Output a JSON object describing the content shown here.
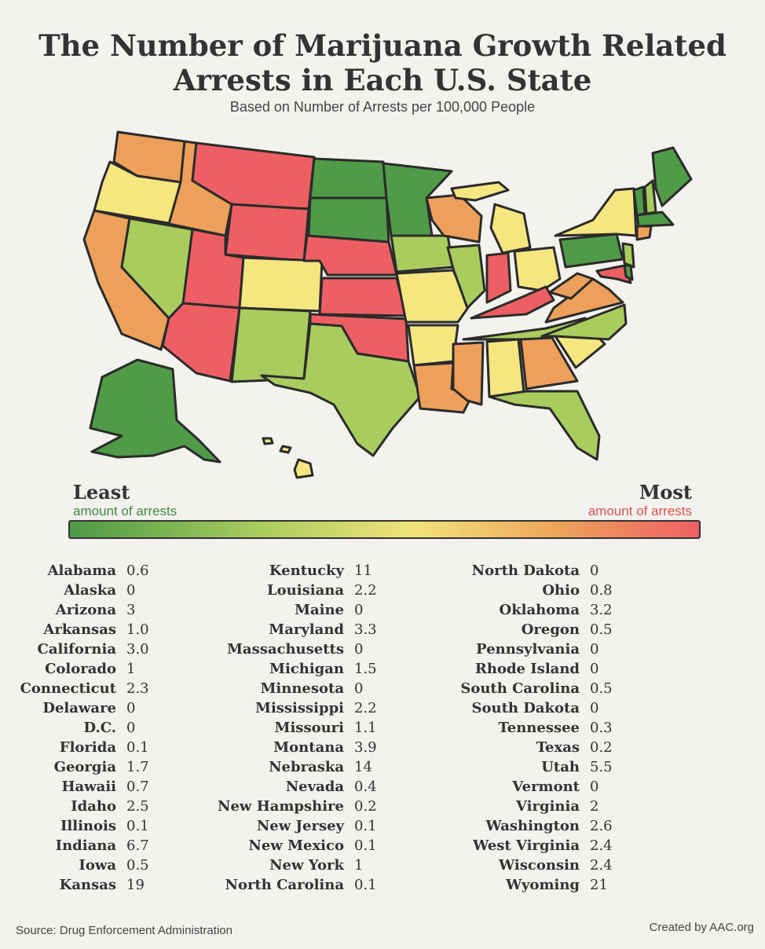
{
  "title_line1": "The Number of Marijuana Growth Related",
  "title_line2": "Arrests in Each U.S. State",
  "subtitle": "Based on Number of Arrests per 100,000 People",
  "legend": {
    "least_label": "Least",
    "least_sub": "amount of arrests",
    "most_label": "Most",
    "most_sub": "amount of arrests"
  },
  "footer": {
    "source": "Source: Drug Enforcement Administration",
    "credit": "Created by AAC.org"
  },
  "colors": {
    "dark_green": "#4f9b48",
    "light_green": "#a9cc5e",
    "yellow": "#f5e680",
    "orange": "#eca05a",
    "red": "#ee5f63"
  },
  "states": [
    {
      "name": "Alabama",
      "value": "0.6"
    },
    {
      "name": "Alaska",
      "value": "0"
    },
    {
      "name": "Arizona",
      "value": "3"
    },
    {
      "name": "Arkansas",
      "value": "1.0"
    },
    {
      "name": "California",
      "value": "3.0"
    },
    {
      "name": "Colorado",
      "value": "1"
    },
    {
      "name": "Connecticut",
      "value": "2.3"
    },
    {
      "name": "Delaware",
      "value": "0"
    },
    {
      "name": "D.C.",
      "value": "0"
    },
    {
      "name": "Florida",
      "value": "0.1"
    },
    {
      "name": "Georgia",
      "value": "1.7"
    },
    {
      "name": "Hawaii",
      "value": "0.7"
    },
    {
      "name": "Idaho",
      "value": "2.5"
    },
    {
      "name": "Illinois",
      "value": "0.1"
    },
    {
      "name": "Indiana",
      "value": "6.7"
    },
    {
      "name": "Iowa",
      "value": "0.5"
    },
    {
      "name": "Kansas",
      "value": "19"
    },
    {
      "name": "Kentucky",
      "value": "11"
    },
    {
      "name": "Louisiana",
      "value": "2.2"
    },
    {
      "name": "Maine",
      "value": "0"
    },
    {
      "name": "Maryland",
      "value": "3.3"
    },
    {
      "name": "Massachusetts",
      "value": "0"
    },
    {
      "name": "Michigan",
      "value": "1.5"
    },
    {
      "name": "Minnesota",
      "value": "0"
    },
    {
      "name": "Mississippi",
      "value": "2.2"
    },
    {
      "name": "Missouri",
      "value": "1.1"
    },
    {
      "name": "Montana",
      "value": "3.9"
    },
    {
      "name": "Nebraska",
      "value": "14"
    },
    {
      "name": "Nevada",
      "value": "0.4"
    },
    {
      "name": "New Hampshire",
      "value": "0.2"
    },
    {
      "name": "New Jersey",
      "value": "0.1"
    },
    {
      "name": "New Mexico",
      "value": "0.1"
    },
    {
      "name": "New York",
      "value": "1"
    },
    {
      "name": "North Carolina",
      "value": "0.1"
    },
    {
      "name": "North Dakota",
      "value": "0"
    },
    {
      "name": "Ohio",
      "value": "0.8"
    },
    {
      "name": "Oklahoma",
      "value": "3.2"
    },
    {
      "name": "Oregon",
      "value": "0.5"
    },
    {
      "name": "Pennsylvania",
      "value": "0"
    },
    {
      "name": "Rhode Island",
      "value": "0"
    },
    {
      "name": "South Carolina",
      "value": "0.5"
    },
    {
      "name": "South Dakota",
      "value": "0"
    },
    {
      "name": "Tennessee",
      "value": "0.3"
    },
    {
      "name": "Texas",
      "value": "0.2"
    },
    {
      "name": "Utah",
      "value": "5.5"
    },
    {
      "name": "Vermont",
      "value": "0"
    },
    {
      "name": "Virginia",
      "value": "2"
    },
    {
      "name": "Washington",
      "value": "2.6"
    },
    {
      "name": "West Virginia",
      "value": "2.4"
    },
    {
      "name": "Wisconsin",
      "value": "2.4"
    },
    {
      "name": "Wyoming",
      "value": "21"
    }
  ]
}
